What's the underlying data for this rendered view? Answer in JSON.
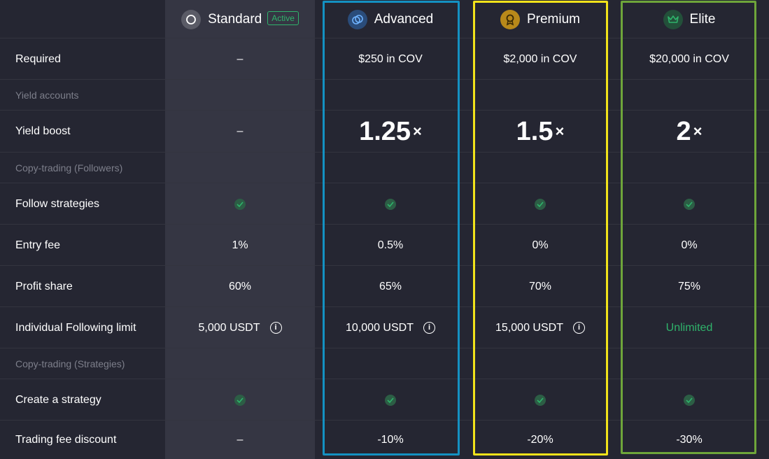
{
  "tiers": {
    "standard": {
      "name": "Standard",
      "badge": "Active",
      "icon": "circle-icon"
    },
    "advanced": {
      "name": "Advanced",
      "icon": "linked-rings-icon",
      "color": "#1491c2"
    },
    "premium": {
      "name": "Premium",
      "icon": "medal-icon",
      "color": "#f2e31a"
    },
    "elite": {
      "name": "Elite",
      "icon": "crown-icon",
      "color": "#6ea53a"
    }
  },
  "sections": {
    "yield": "Yield accounts",
    "followers": "Copy-trading (Followers)",
    "strategies": "Copy-trading (Strategies)"
  },
  "rows": {
    "required": {
      "label": "Required",
      "standard": "–",
      "advanced": "$250 in COV",
      "premium": "$2,000 in COV",
      "elite": "$20,000 in COV"
    },
    "yield_boost": {
      "label": "Yield boost",
      "standard": "–",
      "advanced": "1.25",
      "premium": "1.5",
      "elite": "2",
      "suffix": "×"
    },
    "follow_strategies": {
      "label": "Follow strategies"
    },
    "entry_fee": {
      "label": "Entry fee",
      "standard": "1%",
      "advanced": "0.5%",
      "premium": "0%",
      "elite": "0%"
    },
    "profit_share": {
      "label": "Profit share",
      "standard": "60%",
      "advanced": "65%",
      "premium": "70%",
      "elite": "75%"
    },
    "following_limit": {
      "label": "Individual Following limit",
      "standard": "5,000 USDT",
      "advanced": "10,000 USDT",
      "premium": "15,000 USDT",
      "elite": "Unlimited"
    },
    "create_strategy": {
      "label": "Create a strategy"
    },
    "trading_fee_discount": {
      "label": "Trading fee discount",
      "standard": "–",
      "advanced": "-10%",
      "premium": "-20%",
      "elite": "-30%"
    }
  },
  "colors": {
    "background": "#252632",
    "standard_column": "#353643",
    "check_green": "#2fb36b",
    "muted_text": "#7d7f8b"
  }
}
